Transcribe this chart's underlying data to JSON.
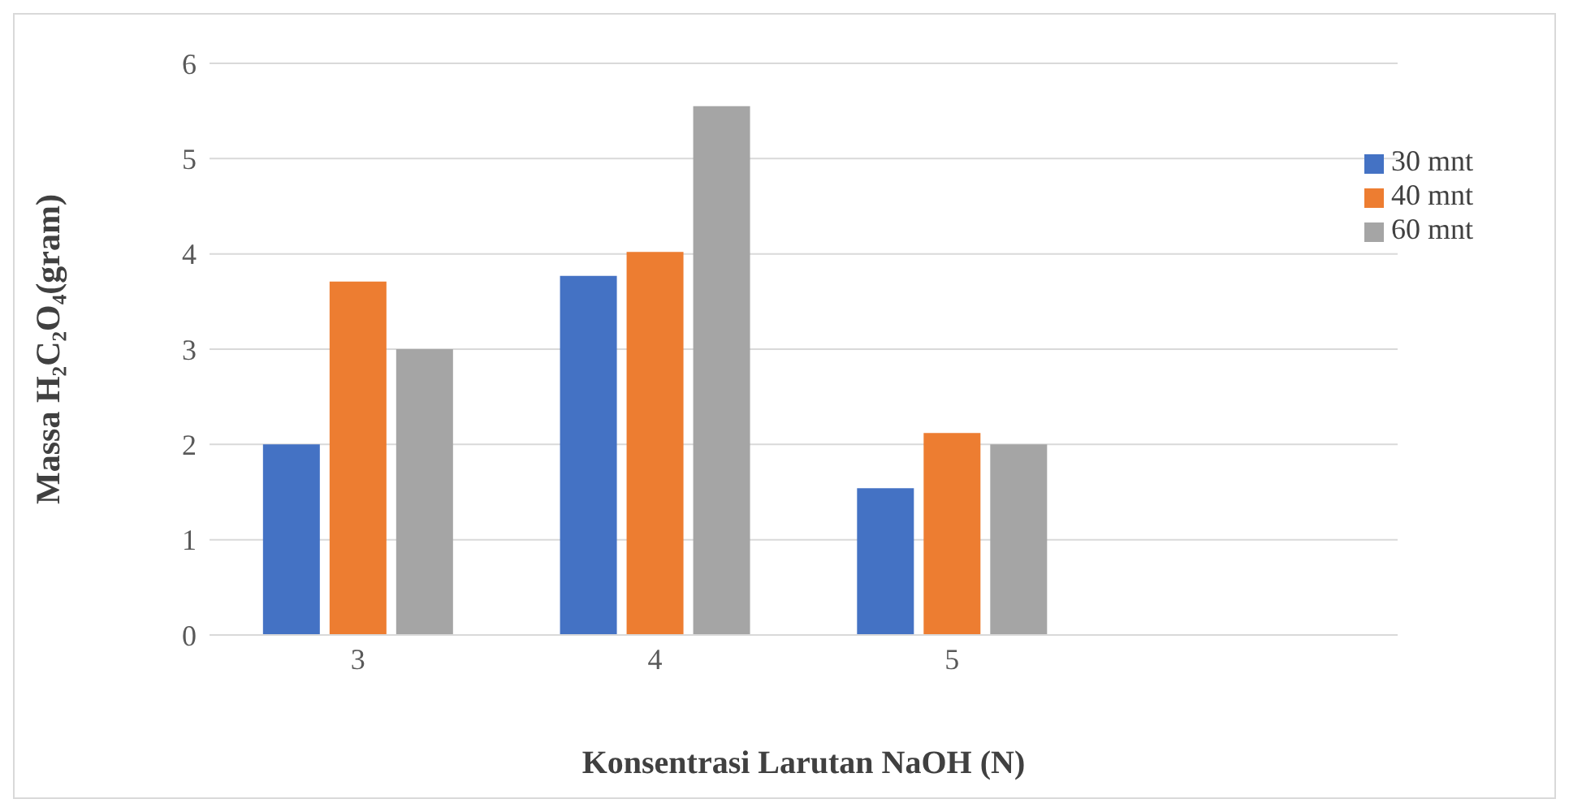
{
  "chart_data": {
    "type": "bar",
    "xlabel": "Konsentrasi Larutan NaOH (N)",
    "ylabel": "Massa  H₂C₂O₄(gram)",
    "categories": [
      "3",
      "4",
      "5",
      null
    ],
    "series": [
      {
        "name": "30 mnt",
        "color": "#4472c4",
        "values": [
          2.0,
          3.77,
          1.54,
          null
        ]
      },
      {
        "name": "40 mnt",
        "color": "#ed7d31",
        "values": [
          3.71,
          4.02,
          2.12,
          null
        ]
      },
      {
        "name": "60 mnt",
        "color": "#a5a5a5",
        "values": [
          3.0,
          5.55,
          2.0,
          null
        ]
      }
    ],
    "ylim": [
      0,
      6
    ],
    "yticks": [
      0,
      1,
      2,
      3,
      4,
      5,
      6
    ],
    "grid": "y",
    "legend": "top right"
  }
}
